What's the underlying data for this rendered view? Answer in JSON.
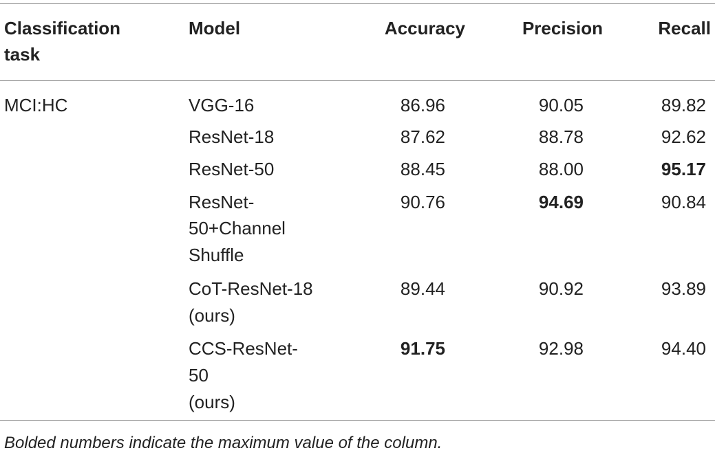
{
  "headers": {
    "task_line1": "Classification",
    "task_line2": "task",
    "model": "Model",
    "accuracy": "Accuracy",
    "precision": "Precision",
    "recall": "Recall"
  },
  "task": "MCI:HC",
  "rows": [
    {
      "model": [
        "VGG-16"
      ],
      "accuracy": "86.96",
      "precision": "90.05",
      "recall": "89.82"
    },
    {
      "model": [
        "ResNet-18"
      ],
      "accuracy": "87.62",
      "precision": "88.78",
      "recall": "92.62"
    },
    {
      "model": [
        "ResNet-50"
      ],
      "accuracy": "88.45",
      "precision": "88.00",
      "recall": "95.17"
    },
    {
      "model": [
        "ResNet-",
        "50+Channel",
        "Shuffle"
      ],
      "accuracy": "90.76",
      "precision": "94.69",
      "recall": "90.84"
    },
    {
      "model": [
        "CoT-ResNet-18",
        "(ours)"
      ],
      "accuracy": "89.44",
      "precision": "90.92",
      "recall": "93.89"
    },
    {
      "model": [
        "CCS-ResNet-",
        "50",
        "(ours)"
      ],
      "accuracy": "91.75",
      "precision": "92.98",
      "recall": "94.40"
    }
  ],
  "bold_cells": [
    "rows.2.recall",
    "rows.3.precision",
    "rows.5.accuracy"
  ],
  "footnote": "Bolded numbers indicate the maximum value of the column."
}
